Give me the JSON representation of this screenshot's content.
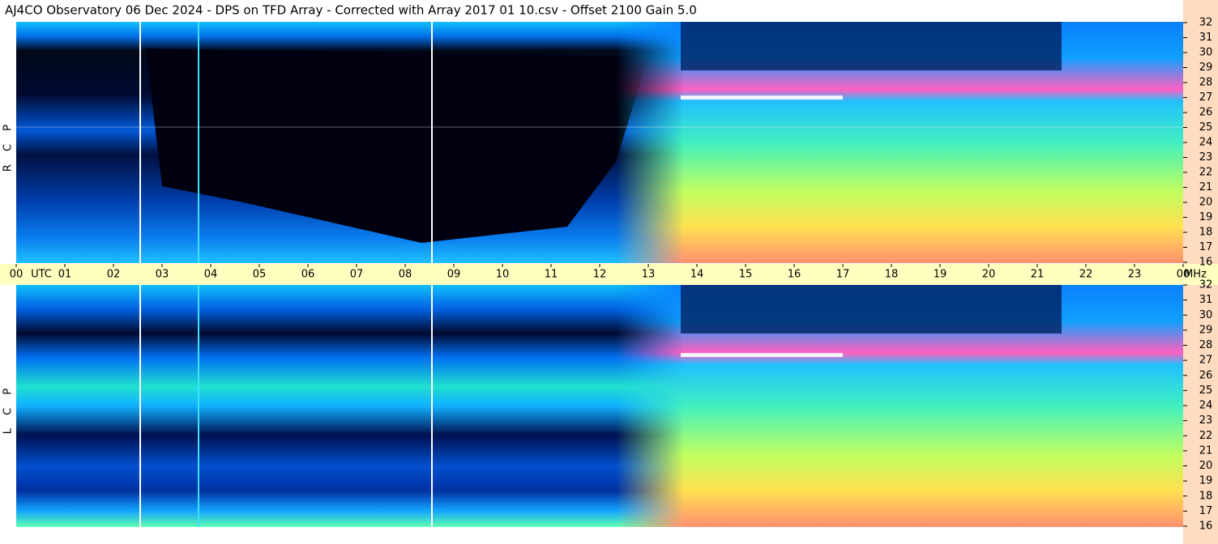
{
  "chart_data": {
    "type": "spectrogram",
    "title": "AJ4CO Observatory  06 Dec 2024  -  DPS on TFD Array  -  Corrected with Array 2017 01 10.csv  -  Offset 2100  Gain 5.0",
    "x_label": "UTC",
    "y_label": "MHz",
    "panels": [
      {
        "label": "R C P"
      },
      {
        "label": "L C P"
      }
    ],
    "xlim": [
      0,
      24
    ],
    "xticks": [
      {
        "value": 0,
        "label": "00"
      },
      {
        "value": 1,
        "label": "01"
      },
      {
        "value": 2,
        "label": "02"
      },
      {
        "value": 3,
        "label": "03"
      },
      {
        "value": 4,
        "label": "04"
      },
      {
        "value": 5,
        "label": "05"
      },
      {
        "value": 6,
        "label": "06"
      },
      {
        "value": 7,
        "label": "07"
      },
      {
        "value": 8,
        "label": "08"
      },
      {
        "value": 9,
        "label": "09"
      },
      10,
      11,
      12,
      13,
      14,
      15,
      16,
      17,
      18,
      19,
      20,
      21,
      22,
      23,
      {
        "value": 24,
        "label": "00"
      }
    ],
    "ylim": [
      16,
      32
    ],
    "yticks": [
      16,
      17,
      18,
      19,
      20,
      21,
      22,
      23,
      24,
      25,
      26,
      27,
      28,
      29,
      30,
      31,
      32
    ]
  }
}
